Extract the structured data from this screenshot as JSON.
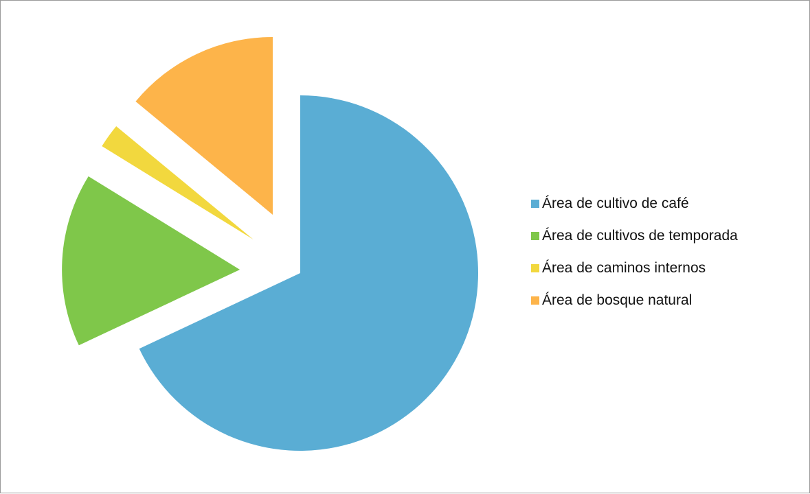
{
  "chart_data": {
    "type": "pie",
    "exploded": true,
    "legend_position": "right",
    "slices": [
      {
        "label": "Área de cultivo de café",
        "value": 68.0,
        "color": "#5AADD4"
      },
      {
        "label": "Área de cultivos de temporada",
        "value": 15.8,
        "color": "#7FC74A"
      },
      {
        "label": "Área de caminos internos",
        "value": 2.2,
        "color": "#F2D83E"
      },
      {
        "label": "Área de bosque natural",
        "value": 14.0,
        "color": "#FDB44A"
      }
    ]
  }
}
